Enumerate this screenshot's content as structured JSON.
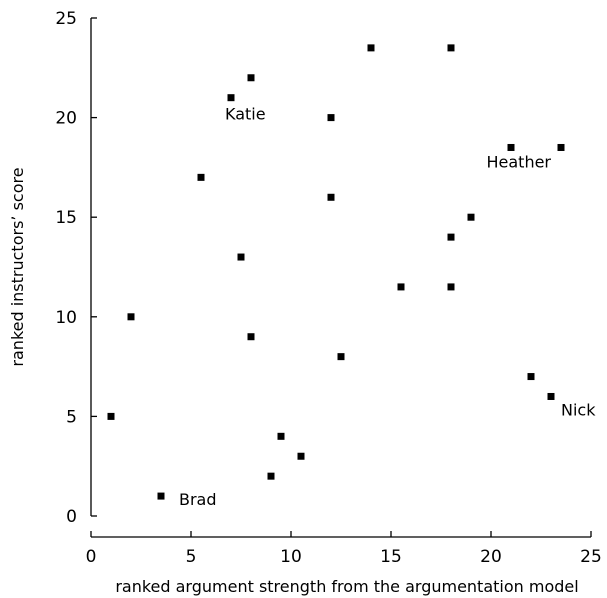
{
  "chart_data": {
    "type": "scatter",
    "title": "",
    "xlabel": "ranked argument strength from the argumentation model",
    "ylabel": "ranked instructors’ score",
    "xlim": [
      0,
      25
    ],
    "ylim": [
      0,
      25
    ],
    "xticks": [
      0,
      5,
      10,
      15,
      20,
      25
    ],
    "yticks": [
      0,
      5,
      10,
      15,
      20,
      25
    ],
    "grid": false,
    "legend": "none",
    "points": [
      {
        "x": 1,
        "y": 5
      },
      {
        "x": 2,
        "y": 10
      },
      {
        "x": 3.5,
        "y": 1,
        "label": "Brad"
      },
      {
        "x": 5.5,
        "y": 17
      },
      {
        "x": 7,
        "y": 21,
        "label": "Katie"
      },
      {
        "x": 7.5,
        "y": 13
      },
      {
        "x": 8,
        "y": 22
      },
      {
        "x": 8,
        "y": 9
      },
      {
        "x": 9,
        "y": 2
      },
      {
        "x": 9.5,
        "y": 4
      },
      {
        "x": 10.5,
        "y": 3
      },
      {
        "x": 12,
        "y": 20
      },
      {
        "x": 12,
        "y": 16
      },
      {
        "x": 12.5,
        "y": 8
      },
      {
        "x": 14,
        "y": 23.5
      },
      {
        "x": 15.5,
        "y": 11.5
      },
      {
        "x": 18,
        "y": 23.5
      },
      {
        "x": 18,
        "y": 14
      },
      {
        "x": 18,
        "y": 11.5
      },
      {
        "x": 19,
        "y": 15
      },
      {
        "x": 21,
        "y": 18.5,
        "label": "Heather"
      },
      {
        "x": 22,
        "y": 7
      },
      {
        "x": 23,
        "y": 6,
        "label": "Nick"
      },
      {
        "x": 23.5,
        "y": 18.5
      }
    ]
  }
}
